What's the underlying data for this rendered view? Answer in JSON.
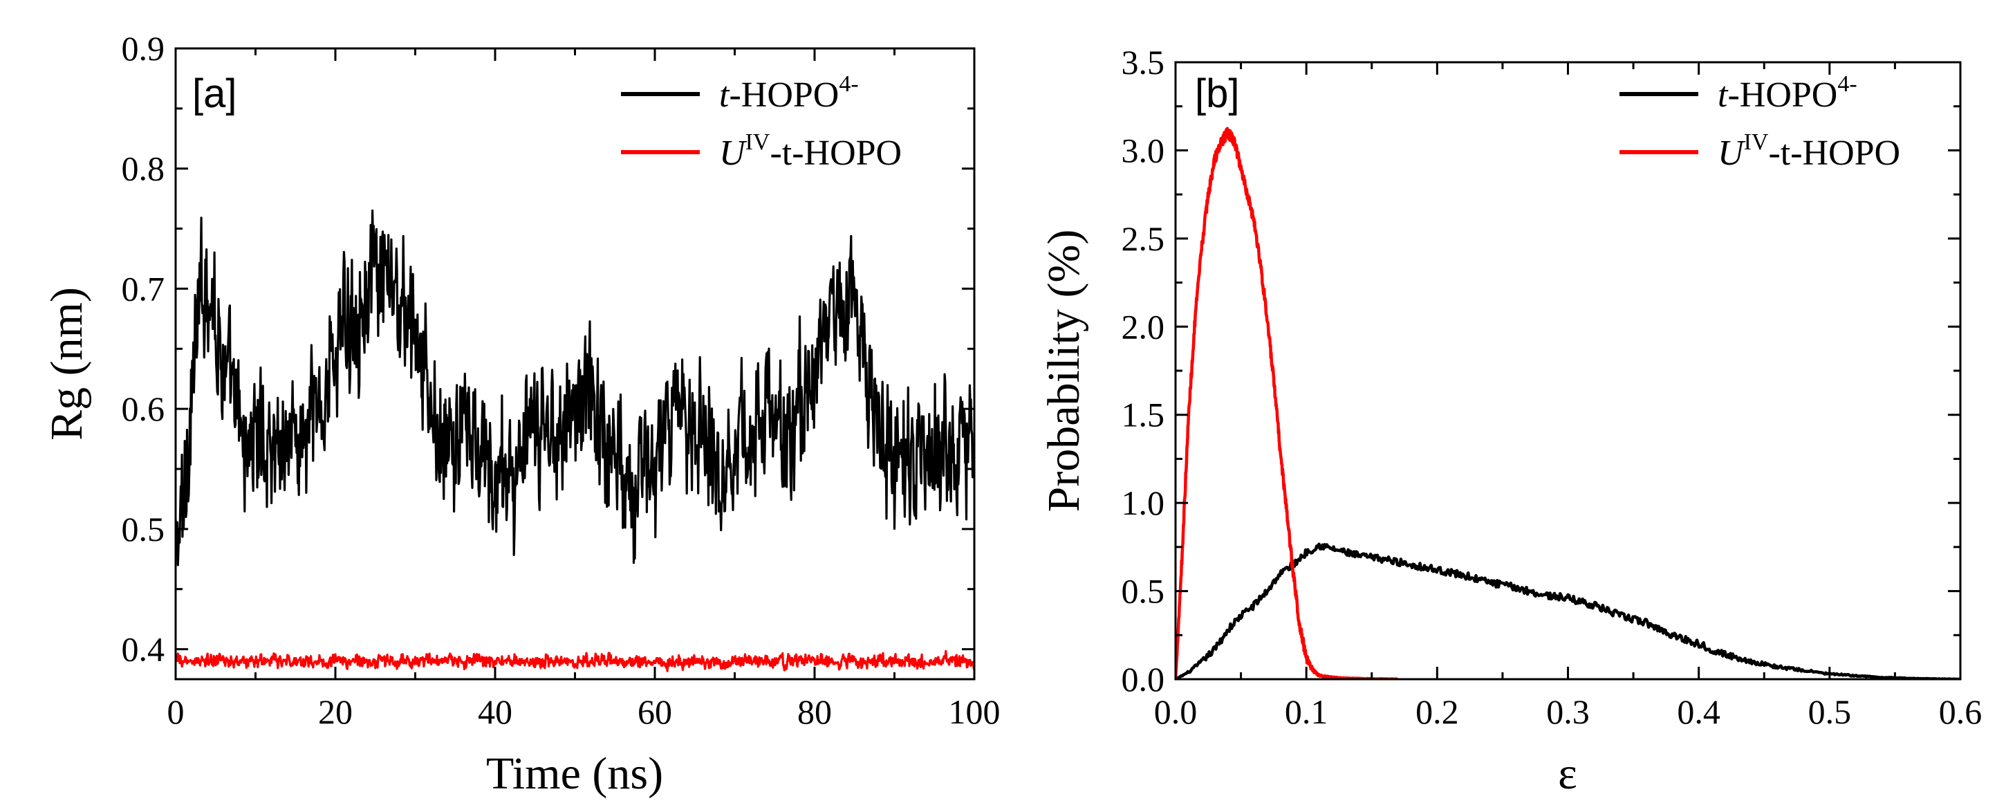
{
  "chart_data": [
    {
      "type": "line",
      "panel": "[a]",
      "xlabel": "Time (ns)",
      "ylabel": "Rg (nm)",
      "xlim": [
        0,
        100
      ],
      "ylim": [
        0.375,
        0.9
      ],
      "x_ticks": [
        0,
        20,
        40,
        60,
        80,
        100
      ],
      "y_ticks": [
        0.4,
        0.5,
        0.6,
        0.7,
        0.8,
        0.9
      ],
      "legend_position": "top-right",
      "series": [
        {
          "name": "t-HOPO4-",
          "label_parts": [
            "t",
            "-HOPO",
            "4-",
            ""
          ],
          "color": "#000000",
          "x": [
            0,
            1,
            2,
            3,
            4,
            5,
            6,
            7,
            8,
            9,
            10,
            12,
            14,
            16,
            18,
            20,
            22,
            24,
            26,
            28,
            30,
            32,
            34,
            36,
            38,
            40,
            42,
            44,
            46,
            48,
            50,
            52,
            54,
            56,
            58,
            60,
            62,
            64,
            66,
            68,
            70,
            72,
            74,
            76,
            78,
            80,
            82,
            84,
            86,
            88,
            90,
            92,
            94,
            96,
            98,
            100
          ],
          "y": [
            0.47,
            0.52,
            0.62,
            0.68,
            0.72,
            0.68,
            0.64,
            0.6,
            0.58,
            0.57,
            0.58,
            0.57,
            0.58,
            0.57,
            0.6,
            0.65,
            0.68,
            0.7,
            0.7,
            0.69,
            0.66,
            0.6,
            0.56,
            0.58,
            0.56,
            0.54,
            0.55,
            0.56,
            0.58,
            0.59,
            0.6,
            0.62,
            0.57,
            0.56,
            0.54,
            0.56,
            0.58,
            0.6,
            0.59,
            0.56,
            0.57,
            0.58,
            0.6,
            0.57,
            0.6,
            0.63,
            0.68,
            0.7,
            0.66,
            0.58,
            0.56,
            0.55,
            0.55,
            0.57,
            0.58,
            0.57
          ],
          "fluctuation": 0.07,
          "range_min": 0.47,
          "range_max": 0.765
        },
        {
          "name": "UIV-t-HOPO",
          "label_parts": [
            "U",
            "",
            "IV",
            "-t-HOPO"
          ],
          "color": "#ff0000",
          "x": [
            0,
            20,
            40,
            60,
            80,
            100
          ],
          "y": [
            0.39,
            0.39,
            0.39,
            0.39,
            0.39,
            0.39
          ],
          "fluctuation": 0.007,
          "range_min": 0.38,
          "range_max": 0.4
        }
      ]
    },
    {
      "type": "line",
      "panel": "[b]",
      "xlabel": "ε",
      "ylabel": "Probability (%)",
      "xlim": [
        0,
        0.6
      ],
      "ylim": [
        0,
        3.5
      ],
      "x_ticks": [
        0.0,
        0.1,
        0.2,
        0.3,
        0.4,
        0.5,
        0.6
      ],
      "y_ticks": [
        0.0,
        0.5,
        1.0,
        1.5,
        2.0,
        2.5,
        3.0,
        3.5
      ],
      "legend_position": "top-right",
      "series": [
        {
          "name": "t-HOPO4-",
          "label_parts": [
            "t",
            "-HOPO",
            "4-",
            ""
          ],
          "color": "#000000",
          "x": [
            0.0,
            0.01,
            0.02,
            0.03,
            0.04,
            0.05,
            0.06,
            0.07,
            0.08,
            0.09,
            0.1,
            0.11,
            0.12,
            0.14,
            0.16,
            0.18,
            0.2,
            0.22,
            0.24,
            0.26,
            0.28,
            0.3,
            0.32,
            0.34,
            0.36,
            0.38,
            0.4,
            0.42,
            0.44,
            0.46,
            0.48,
            0.5,
            0.52,
            0.54,
            0.56,
            0.58,
            0.6
          ],
          "y": [
            0.0,
            0.04,
            0.1,
            0.17,
            0.28,
            0.36,
            0.42,
            0.5,
            0.6,
            0.65,
            0.72,
            0.76,
            0.74,
            0.7,
            0.68,
            0.65,
            0.62,
            0.59,
            0.55,
            0.52,
            0.48,
            0.46,
            0.42,
            0.36,
            0.32,
            0.25,
            0.2,
            0.14,
            0.1,
            0.07,
            0.05,
            0.03,
            0.02,
            0.01,
            0.005,
            0.002,
            0.0
          ],
          "fluctuation": 0.02
        },
        {
          "name": "UIV-t-HOPO",
          "label_parts": [
            "U",
            "",
            "IV",
            "-t-HOPO"
          ],
          "color": "#ff0000",
          "x": [
            0.0,
            0.005,
            0.01,
            0.015,
            0.02,
            0.025,
            0.03,
            0.035,
            0.04,
            0.045,
            0.05,
            0.055,
            0.06,
            0.065,
            0.07,
            0.075,
            0.08,
            0.085,
            0.09,
            0.095,
            0.1,
            0.105,
            0.11,
            0.12,
            0.13,
            0.15,
            0.17
          ],
          "y": [
            0.0,
            0.7,
            1.5,
            2.05,
            2.45,
            2.75,
            2.95,
            3.05,
            3.1,
            3.05,
            2.9,
            2.75,
            2.6,
            2.35,
            2.05,
            1.7,
            1.3,
            0.95,
            0.6,
            0.3,
            0.12,
            0.05,
            0.02,
            0.01,
            0.005,
            0.002,
            0.0
          ],
          "fluctuation": 0.03
        }
      ]
    }
  ]
}
